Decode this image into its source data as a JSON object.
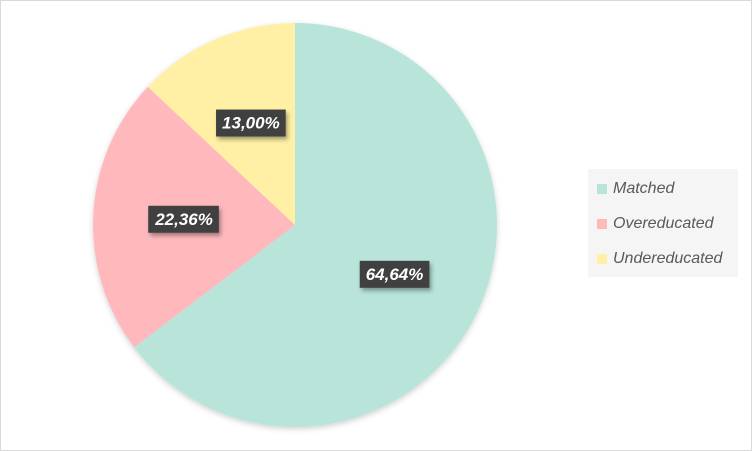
{
  "chart_data": {
    "type": "pie",
    "slices": [
      {
        "name": "Matched",
        "value": 64.64,
        "label": "64,64%",
        "color": "#b9e4da"
      },
      {
        "name": "Overeducated",
        "value": 22.36,
        "label": "22,36%",
        "color": "#ffb9bd"
      },
      {
        "name": "Undereducated",
        "value": 13.0,
        "label": "13,00%",
        "color": "#fff0a6"
      }
    ],
    "title": "",
    "legend_position": "right",
    "label_box_color": "#404040",
    "label_text_color": "#ffffff"
  }
}
